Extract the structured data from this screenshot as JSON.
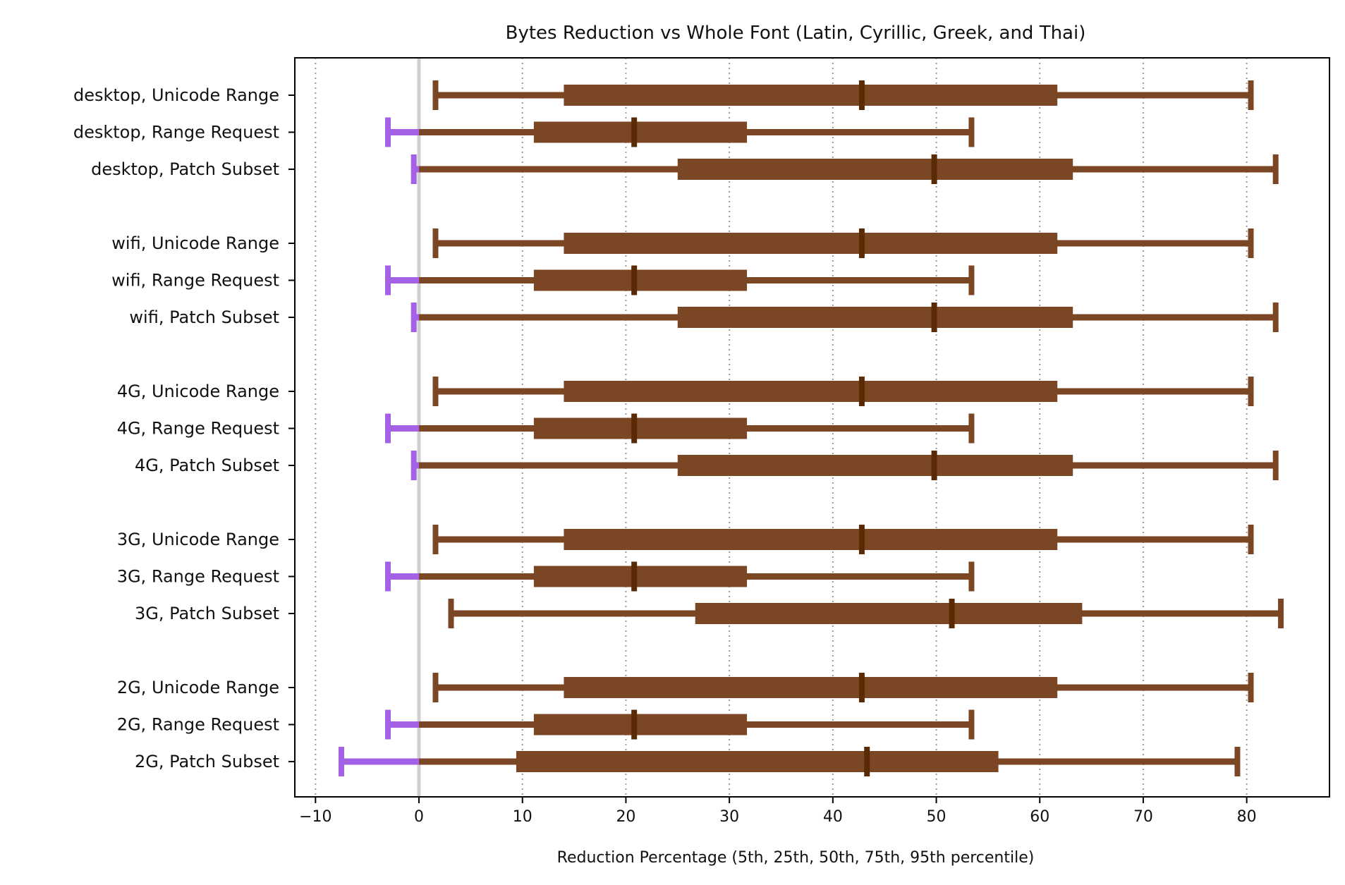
{
  "chart_data": {
    "type": "box",
    "title": "Bytes Reduction vs Whole Font (Latin, Cyrillic, Greek, and Thai)",
    "xlabel": "Reduction Percentage  (5th, 25th, 50th, 75th, 95th percentile)",
    "ylabel": "",
    "xlim": [
      -12,
      88
    ],
    "xticks": [
      -10,
      0,
      10,
      20,
      30,
      40,
      50,
      60,
      70,
      80
    ],
    "xtick_labels": [
      "−10",
      "0",
      "10",
      "20",
      "30",
      "40",
      "50",
      "60",
      "70",
      "80"
    ],
    "grid": "vertical dotted",
    "zero_line": true,
    "colors": {
      "box": "#7b4623",
      "median": "#5a2a05",
      "negative": "#a461e6",
      "grid": "#999999",
      "zero_line": "#cfcfcf"
    },
    "rows": [
      {
        "label": "desktop, Unicode Range",
        "p5": 1.6,
        "p25": 14.0,
        "p50": 42.8,
        "p75": 61.7,
        "p95": 80.4
      },
      {
        "label": "desktop, Range Request",
        "p5": -3.0,
        "p25": 11.1,
        "p50": 20.8,
        "p75": 31.7,
        "p95": 53.4
      },
      {
        "label": "desktop, Patch Subset",
        "p5": -0.5,
        "p25": 25.0,
        "p50": 49.8,
        "p75": 63.2,
        "p95": 82.8
      },
      {
        "label": "wifi, Unicode Range",
        "p5": 1.6,
        "p25": 14.0,
        "p50": 42.8,
        "p75": 61.7,
        "p95": 80.4
      },
      {
        "label": "wifi, Range Request",
        "p5": -3.0,
        "p25": 11.1,
        "p50": 20.8,
        "p75": 31.7,
        "p95": 53.4
      },
      {
        "label": "wifi, Patch Subset",
        "p5": -0.5,
        "p25": 25.0,
        "p50": 49.8,
        "p75": 63.2,
        "p95": 82.8
      },
      {
        "label": "4G, Unicode Range",
        "p5": 1.6,
        "p25": 14.0,
        "p50": 42.8,
        "p75": 61.7,
        "p95": 80.4
      },
      {
        "label": "4G, Range Request",
        "p5": -3.0,
        "p25": 11.1,
        "p50": 20.8,
        "p75": 31.7,
        "p95": 53.4
      },
      {
        "label": "4G, Patch Subset",
        "p5": -0.5,
        "p25": 25.0,
        "p50": 49.8,
        "p75": 63.2,
        "p95": 82.8
      },
      {
        "label": "3G, Unicode Range",
        "p5": 1.6,
        "p25": 14.0,
        "p50": 42.8,
        "p75": 61.7,
        "p95": 80.4
      },
      {
        "label": "3G, Range Request",
        "p5": -3.0,
        "p25": 11.1,
        "p50": 20.8,
        "p75": 31.7,
        "p95": 53.4
      },
      {
        "label": "3G, Patch Subset",
        "p5": 3.1,
        "p25": 26.7,
        "p50": 51.5,
        "p75": 64.1,
        "p95": 83.3
      },
      {
        "label": "2G, Unicode Range",
        "p5": 1.6,
        "p25": 14.0,
        "p50": 42.8,
        "p75": 61.7,
        "p95": 80.4
      },
      {
        "label": "2G, Range Request",
        "p5": -3.0,
        "p25": 11.1,
        "p50": 20.8,
        "p75": 31.7,
        "p95": 53.4
      },
      {
        "label": "2G, Patch Subset",
        "p5": -7.5,
        "p25": 9.4,
        "p50": 43.3,
        "p75": 56.0,
        "p95": 79.1
      }
    ]
  }
}
